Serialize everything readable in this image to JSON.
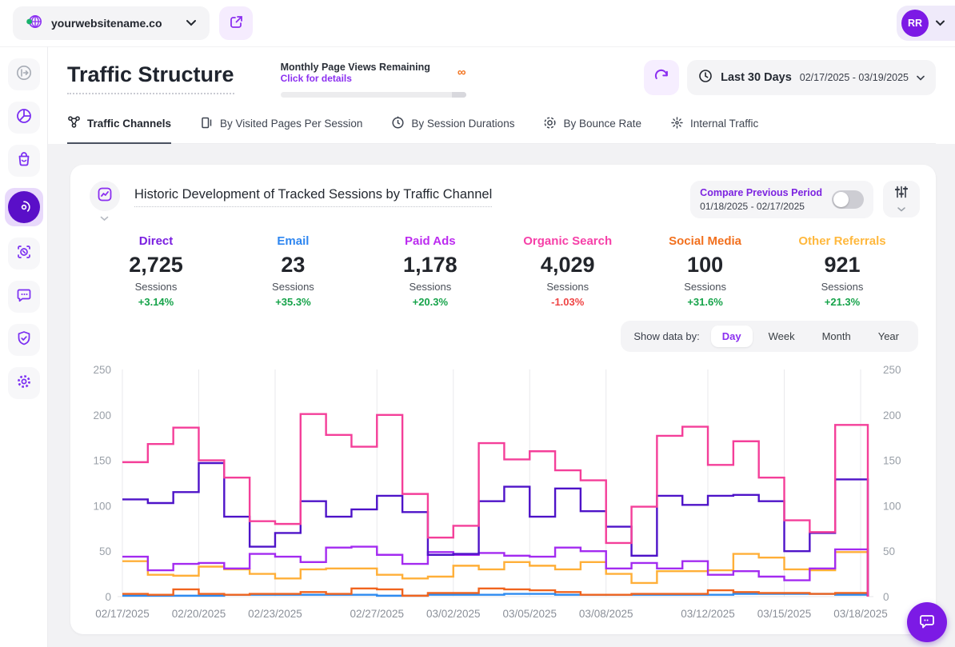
{
  "topbar": {
    "site_name": "yourwebsitename.co",
    "avatar_initials": "RR",
    "icons": [
      "globe-icon",
      "chevron-down-icon",
      "open-external-icon",
      "avatar",
      "chevron-down-icon"
    ]
  },
  "sidebar": {
    "icons": [
      "collapse-panel-icon",
      "pie-chart-icon",
      "shopping-bag-icon",
      "sessions-radar-icon",
      "focus-capture-icon",
      "chat-bubble-icon",
      "shield-check-icon",
      "settings-gear-icon"
    ],
    "active_index": 3
  },
  "header": {
    "title": "Traffic Structure",
    "usage": {
      "label": "Monthly Page Views Remaining",
      "link": "Click for details",
      "infinity": "∞"
    },
    "period": {
      "label": "Last 30 Days",
      "range": "02/17/2025 - 03/19/2025"
    }
  },
  "tabs": {
    "items": [
      {
        "label": "Traffic Channels",
        "icon": "channels-nodes-icon",
        "active": true
      },
      {
        "label": "By Visited Pages Per Session",
        "icon": "pages-icon",
        "active": false
      },
      {
        "label": "By Session Durations",
        "icon": "duration-clock-icon",
        "active": false
      },
      {
        "label": "By Bounce Rate",
        "icon": "bounce-target-icon",
        "active": false
      },
      {
        "label": "Internal Traffic",
        "icon": "internal-burst-icon",
        "active": false
      }
    ]
  },
  "card": {
    "title": "Historic Development of Tracked Sessions by Traffic Channel",
    "compare": {
      "label": "Compare Previous Period",
      "range": "01/18/2025 - 02/17/2025",
      "toggle_on": false
    },
    "stats": [
      {
        "label": "Direct",
        "color": "#7A1FE0",
        "value": "2,725",
        "sub": "Sessions",
        "change": "+3.14%",
        "change_color": "#16A34A"
      },
      {
        "label": "Email",
        "color": "#2E86F0",
        "value": "23",
        "sub": "Sessions",
        "change": "+35.3%",
        "change_color": "#16A34A"
      },
      {
        "label": "Paid Ads",
        "color": "#BC2BF0",
        "value": "1,178",
        "sub": "Sessions",
        "change": "+20.3%",
        "change_color": "#16A34A"
      },
      {
        "label": "Organic Search",
        "color": "#F640A8",
        "value": "4,029",
        "sub": "Sessions",
        "change": "-1.03%",
        "change_color": "#EF4444"
      },
      {
        "label": "Social Media",
        "color": "#F2701E",
        "value": "100",
        "sub": "Sessions",
        "change": "+31.6%",
        "change_color": "#16A34A"
      },
      {
        "label": "Other Referrals",
        "color": "#FFB83D",
        "value": "921",
        "sub": "Sessions",
        "change": "+21.3%",
        "change_color": "#16A34A"
      }
    ],
    "show_data_by": {
      "label": "Show data by:",
      "options": [
        "Day",
        "Week",
        "Month",
        "Year"
      ],
      "selected": "Day"
    }
  },
  "chart_data": {
    "type": "line",
    "step": true,
    "title": "Historic Development of Tracked Sessions by Traffic Channel",
    "ylim": [
      0,
      250
    ],
    "y_ticks": [
      0,
      50,
      100,
      150,
      200,
      250
    ],
    "grid": "vertical-only",
    "x": [
      "02/17/2025",
      "02/18/2025",
      "02/19/2025",
      "02/20/2025",
      "02/21/2025",
      "02/22/2025",
      "02/23/2025",
      "02/24/2025",
      "02/25/2025",
      "02/26/2025",
      "02/27/2025",
      "02/28/2025",
      "03/01/2025",
      "03/02/2025",
      "03/03/2025",
      "03/04/2025",
      "03/05/2025",
      "03/06/2025",
      "03/07/2025",
      "03/08/2025",
      "03/09/2025",
      "03/10/2025",
      "03/11/2025",
      "03/12/2025",
      "03/13/2025",
      "03/14/2025",
      "03/15/2025",
      "03/16/2025",
      "03/17/2025",
      "03/18/2025"
    ],
    "x_ticks": [
      {
        "i": 0,
        "label": "02/17/2025"
      },
      {
        "i": 3,
        "label": "02/20/2025"
      },
      {
        "i": 6,
        "label": "02/23/2025"
      },
      {
        "i": 10,
        "label": "02/27/2025"
      },
      {
        "i": 13,
        "label": "03/02/2025"
      },
      {
        "i": 16,
        "label": "03/05/2025"
      },
      {
        "i": 19,
        "label": "03/08/2025"
      },
      {
        "i": 23,
        "label": "03/12/2025"
      },
      {
        "i": 26,
        "label": "03/15/2025"
      },
      {
        "i": 29,
        "label": "03/18/2025"
      }
    ],
    "series": [
      {
        "name": "Email",
        "color": "#2E8BF0",
        "values": [
          1,
          1,
          1,
          1,
          2,
          2,
          2,
          2,
          2,
          2,
          1,
          1,
          2,
          2,
          2,
          3,
          3,
          2,
          2,
          2,
          2,
          2,
          2,
          2,
          3,
          3,
          3,
          3,
          2,
          2
        ]
      },
      {
        "name": "Social Media",
        "color": "#F0641E",
        "values": [
          3,
          2,
          8,
          3,
          2,
          3,
          3,
          5,
          3,
          9,
          8,
          1,
          4,
          4,
          9,
          8,
          7,
          5,
          2,
          2,
          3,
          3,
          3,
          7,
          5,
          4,
          4,
          3,
          4,
          4
        ]
      },
      {
        "name": "Other Referrals",
        "color": "#FFAF38",
        "values": [
          39,
          24,
          23,
          33,
          30,
          25,
          20,
          30,
          31,
          31,
          24,
          20,
          22,
          34,
          30,
          38,
          34,
          30,
          38,
          25,
          15,
          28,
          28,
          29,
          47,
          43,
          30,
          29,
          49,
          49
        ]
      },
      {
        "name": "Paid Ads",
        "color": "#A32BF0",
        "values": [
          44,
          29,
          36,
          37,
          31,
          47,
          44,
          38,
          54,
          55,
          46,
          36,
          49,
          46,
          48,
          45,
          44,
          54,
          50,
          31,
          37,
          31,
          39,
          24,
          28,
          22,
          18,
          31,
          52,
          52
        ]
      },
      {
        "name": "Direct",
        "color": "#4E13C8",
        "values": [
          107,
          103,
          115,
          147,
          88,
          55,
          70,
          105,
          88,
          96,
          111,
          93,
          46,
          47,
          105,
          121,
          88,
          119,
          94,
          77,
          45,
          111,
          101,
          111,
          112,
          105,
          50,
          70,
          129,
          129
        ]
      },
      {
        "name": "Organic Search",
        "color": "#F43F99",
        "values": [
          148,
          168,
          186,
          150,
          131,
          83,
          80,
          201,
          178,
          165,
          200,
          113,
          65,
          78,
          169,
          151,
          160,
          139,
          128,
          59,
          99,
          177,
          187,
          145,
          171,
          131,
          84,
          71,
          189,
          189
        ]
      }
    ]
  }
}
